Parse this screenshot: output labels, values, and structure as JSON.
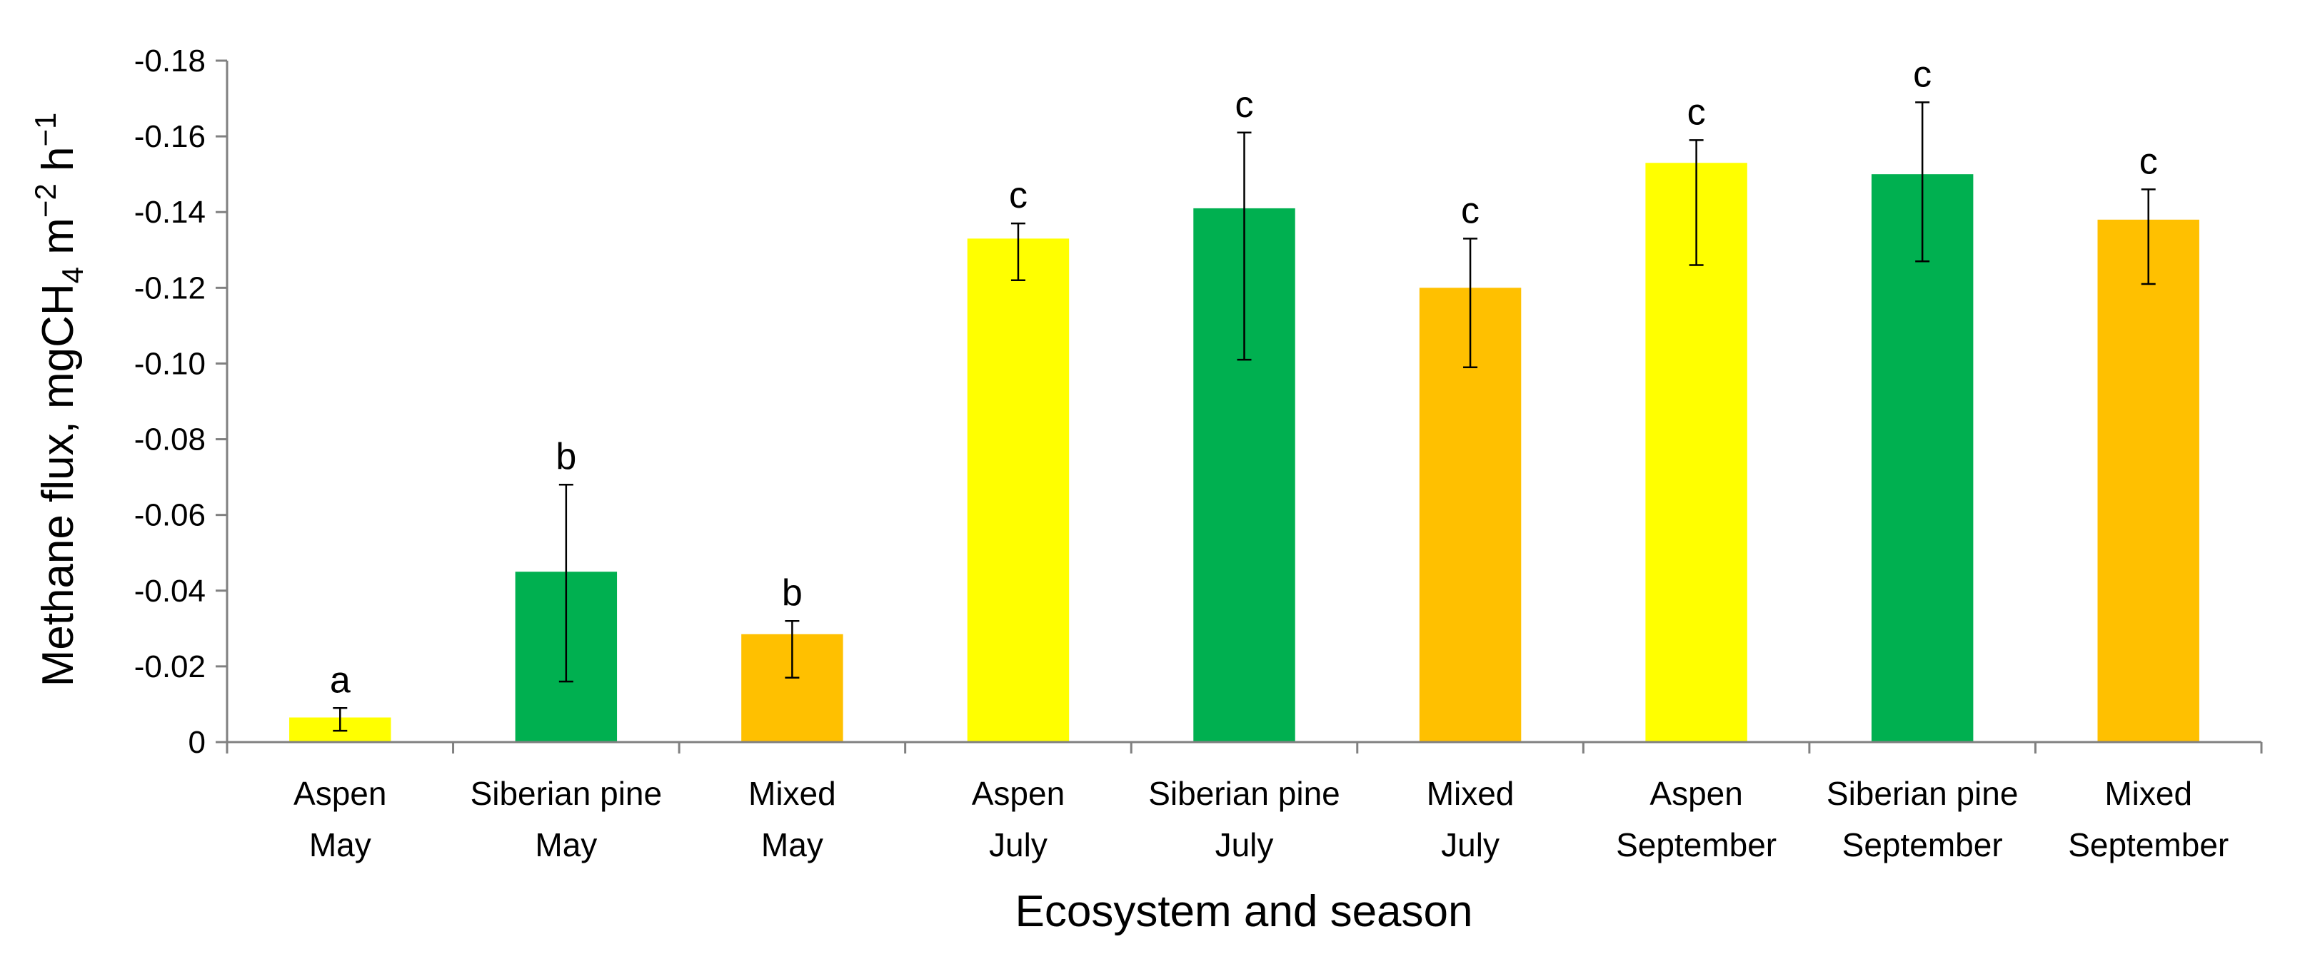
{
  "chart_data": {
    "type": "bar",
    "title": "",
    "xlabel": "Ecosystem and season",
    "ylabel": {
      "prefix": "Methane flux,  mgCH",
      "sub": "4",
      "mid": " m",
      "sup1": "−2",
      "mid2": " h",
      "sup2": "−1"
    },
    "ylim": [
      0,
      -0.18
    ],
    "yticks": [
      {
        "value": 0,
        "label": "0"
      },
      {
        "value": -0.02,
        "label": "-0.02"
      },
      {
        "value": -0.04,
        "label": "-0.04"
      },
      {
        "value": -0.06,
        "label": "-0.06"
      },
      {
        "value": -0.08,
        "label": "-0.08"
      },
      {
        "value": -0.1,
        "label": "-0.10"
      },
      {
        "value": -0.12,
        "label": "-0.12"
      },
      {
        "value": -0.14,
        "label": "-0.14"
      },
      {
        "value": -0.16,
        "label": "-0.16"
      },
      {
        "value": -0.18,
        "label": "-0.18"
      }
    ],
    "grid": false,
    "colors": {
      "Aspen": "#FFFF00",
      "Siberian pine": "#00B050",
      "Mixed": "#FFC000",
      "axis": "#808080",
      "errorbar": "#000000"
    },
    "bars": [
      {
        "ecosystem": "Aspen",
        "season": "May",
        "value": -0.0065,
        "err_low": -0.003,
        "err_high": -0.009,
        "letter": "a"
      },
      {
        "ecosystem": "Siberian pine",
        "season": "May",
        "value": -0.045,
        "err_low": -0.016,
        "err_high": -0.068,
        "letter": "b"
      },
      {
        "ecosystem": "Mixed",
        "season": "May",
        "value": -0.0285,
        "err_low": -0.017,
        "err_high": -0.032,
        "letter": "b"
      },
      {
        "ecosystem": "Aspen",
        "season": "July",
        "value": -0.133,
        "err_low": -0.122,
        "err_high": -0.137,
        "letter": "c"
      },
      {
        "ecosystem": "Siberian pine",
        "season": "July",
        "value": -0.141,
        "err_low": -0.101,
        "err_high": -0.161,
        "letter": "c"
      },
      {
        "ecosystem": "Mixed",
        "season": "July",
        "value": -0.12,
        "err_low": -0.099,
        "err_high": -0.133,
        "letter": "c"
      },
      {
        "ecosystem": "Aspen",
        "season": "September",
        "value": -0.153,
        "err_low": -0.126,
        "err_high": -0.159,
        "letter": "c"
      },
      {
        "ecosystem": "Siberian pine",
        "season": "September",
        "value": -0.15,
        "err_low": -0.127,
        "err_high": -0.169,
        "letter": "c"
      },
      {
        "ecosystem": "Mixed",
        "season": "September",
        "value": -0.138,
        "err_low": -0.121,
        "err_high": -0.146,
        "letter": "c"
      }
    ]
  }
}
